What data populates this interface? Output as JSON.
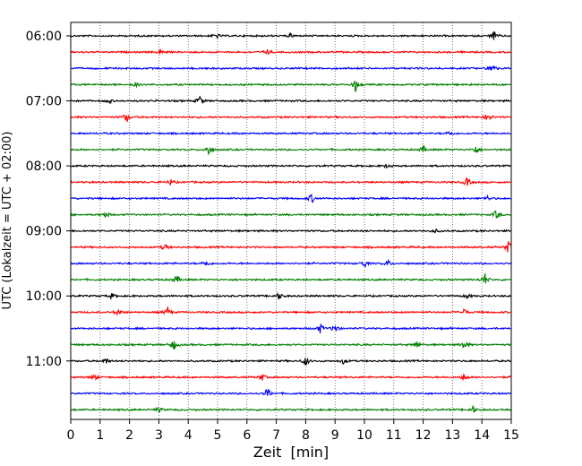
{
  "chart_data": {
    "type": "line",
    "chart_kind": "helicorder seismogram",
    "xlabel": "Zeit  [min]",
    "ylabel": "UTC (Lokalzeit = UTC + 02:00)",
    "xlim": [
      0,
      15
    ],
    "x_ticks": [
      0,
      1,
      2,
      3,
      4,
      5,
      6,
      7,
      8,
      9,
      10,
      11,
      12,
      13,
      14,
      15
    ],
    "x_tick_labels": [
      "0",
      "1",
      "2",
      "3",
      "4",
      "5",
      "6",
      "7",
      "8",
      "9",
      "10",
      "11",
      "12",
      "13",
      "14",
      "15"
    ],
    "vertical_grid": "dotted at each minute",
    "trace_interval_minutes": 15,
    "trace_start": "06:00",
    "trace_count": 24,
    "y_tick_labels": [
      "06:00",
      "07:00",
      "08:00",
      "09:00",
      "10:00",
      "11:00"
    ],
    "color_cycle": [
      "#000000",
      "#ff0000",
      "#0000ff",
      "#008000"
    ],
    "traces": [
      {
        "start": "06:00",
        "color": "#000000",
        "spikes": [
          {
            "x": 4.95,
            "amp": 0.35
          },
          {
            "x": 7.5,
            "amp": 0.25
          },
          {
            "x": 14.4,
            "amp": 0.6
          }
        ]
      },
      {
        "start": "06:15",
        "color": "#ff0000",
        "spikes": [
          {
            "x": 3.05,
            "amp": 0.35
          },
          {
            "x": 6.7,
            "amp": 0.3
          }
        ]
      },
      {
        "start": "06:30",
        "color": "#0000ff",
        "spikes": [
          {
            "x": 14.35,
            "amp": 0.8
          }
        ]
      },
      {
        "start": "06:45",
        "color": "#008000",
        "spikes": [
          {
            "x": 9.7,
            "amp": 0.9
          },
          {
            "x": 2.2,
            "amp": 0.3
          }
        ]
      },
      {
        "start": "07:00",
        "color": "#000000",
        "spikes": [
          {
            "x": 4.4,
            "amp": 0.7
          },
          {
            "x": 1.3,
            "amp": 0.3
          }
        ]
      },
      {
        "start": "07:15",
        "color": "#ff0000",
        "spikes": [
          {
            "x": 1.9,
            "amp": 0.7
          },
          {
            "x": 14.2,
            "amp": 0.6
          }
        ]
      },
      {
        "start": "07:30",
        "color": "#0000ff",
        "spikes": [
          {
            "x": 12.9,
            "amp": 0.3
          }
        ]
      },
      {
        "start": "07:45",
        "color": "#008000",
        "spikes": [
          {
            "x": 4.7,
            "amp": 0.7
          },
          {
            "x": 12.0,
            "amp": 0.45
          },
          {
            "x": 13.8,
            "amp": 0.6
          }
        ]
      },
      {
        "start": "08:00",
        "color": "#000000",
        "spikes": [
          {
            "x": 10.8,
            "amp": 0.3
          }
        ]
      },
      {
        "start": "08:15",
        "color": "#ff0000",
        "spikes": [
          {
            "x": 13.5,
            "amp": 0.6
          },
          {
            "x": 3.4,
            "amp": 0.35
          }
        ]
      },
      {
        "start": "08:30",
        "color": "#0000ff",
        "spikes": [
          {
            "x": 8.2,
            "amp": 0.6
          },
          {
            "x": 14.2,
            "amp": 0.3
          }
        ]
      },
      {
        "start": "08:45",
        "color": "#008000",
        "spikes": [
          {
            "x": 1.2,
            "amp": 0.45
          },
          {
            "x": 14.5,
            "amp": 0.65
          }
        ]
      },
      {
        "start": "09:00",
        "color": "#000000",
        "spikes": [
          {
            "x": 12.4,
            "amp": 0.25
          }
        ]
      },
      {
        "start": "09:15",
        "color": "#ff0000",
        "spikes": [
          {
            "x": 3.2,
            "amp": 0.45
          },
          {
            "x": 14.9,
            "amp": 0.8
          }
        ]
      },
      {
        "start": "09:30",
        "color": "#0000ff",
        "spikes": [
          {
            "x": 4.6,
            "amp": 0.45
          },
          {
            "x": 10.0,
            "amp": 0.5
          },
          {
            "x": 10.8,
            "amp": 0.45
          }
        ]
      },
      {
        "start": "09:45",
        "color": "#008000",
        "spikes": [
          {
            "x": 3.6,
            "amp": 0.6
          },
          {
            "x": 14.1,
            "amp": 0.8
          }
        ]
      },
      {
        "start": "10:00",
        "color": "#000000",
        "spikes": [
          {
            "x": 7.1,
            "amp": 0.45
          },
          {
            "x": 1.4,
            "amp": 0.35
          },
          {
            "x": 13.5,
            "amp": 0.3
          }
        ]
      },
      {
        "start": "10:15",
        "color": "#ff0000",
        "spikes": [
          {
            "x": 1.6,
            "amp": 0.5
          },
          {
            "x": 3.3,
            "amp": 0.6
          },
          {
            "x": 13.4,
            "amp": 0.45
          }
        ]
      },
      {
        "start": "10:30",
        "color": "#0000ff",
        "spikes": [
          {
            "x": 8.5,
            "amp": 0.6
          },
          {
            "x": 9.0,
            "amp": 0.6
          }
        ]
      },
      {
        "start": "10:45",
        "color": "#008000",
        "spikes": [
          {
            "x": 3.5,
            "amp": 0.7
          },
          {
            "x": 13.4,
            "amp": 0.75
          },
          {
            "x": 11.8,
            "amp": 0.4
          }
        ]
      },
      {
        "start": "11:00",
        "color": "#000000",
        "spikes": [
          {
            "x": 8.0,
            "amp": 0.65
          },
          {
            "x": 9.3,
            "amp": 0.4
          },
          {
            "x": 1.2,
            "amp": 0.35
          }
        ]
      },
      {
        "start": "11:15",
        "color": "#ff0000",
        "spikes": [
          {
            "x": 0.8,
            "amp": 0.45
          },
          {
            "x": 6.5,
            "amp": 0.5
          },
          {
            "x": 13.4,
            "amp": 0.55
          }
        ]
      },
      {
        "start": "11:30",
        "color": "#0000ff",
        "spikes": [
          {
            "x": 6.7,
            "amp": 0.7
          }
        ]
      },
      {
        "start": "11:45",
        "color": "#008000",
        "spikes": [
          {
            "x": 13.7,
            "amp": 0.45
          },
          {
            "x": 3.0,
            "amp": 0.3
          }
        ]
      }
    ]
  }
}
